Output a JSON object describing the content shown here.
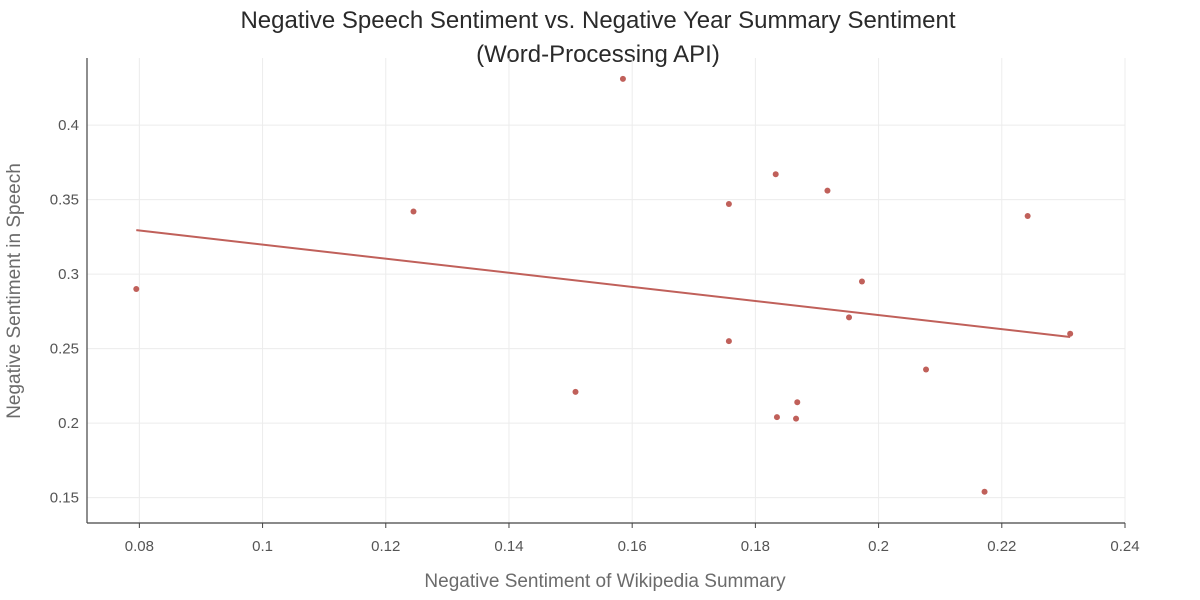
{
  "chart_data": {
    "type": "scatter",
    "title": "Negative Speech Sentiment vs. Negative Year Summary Sentiment",
    "subtitle": "(Word-Processing API)",
    "xlabel": "Negative Sentiment of Wikipedia Summary",
    "ylabel": "Negative Sentiment in Speech",
    "xlim": [
      0.0715,
      0.24
    ],
    "ylim": [
      0.133,
      0.445
    ],
    "x_ticks": [
      0.08,
      0.1,
      0.12,
      0.14,
      0.16,
      0.18,
      0.2,
      0.22,
      0.24
    ],
    "x_tick_labels": [
      "0.08",
      "0.1",
      "0.12",
      "0.14",
      "0.16",
      "0.18",
      "0.2",
      "0.22",
      "0.24"
    ],
    "y_ticks": [
      0.15,
      0.2,
      0.25,
      0.3,
      0.35,
      0.4
    ],
    "y_tick_labels": [
      "0.15",
      "0.2",
      "0.25",
      "0.3",
      "0.35",
      "0.4"
    ],
    "grid": true,
    "color": "#c0605a",
    "series": [
      {
        "name": "points",
        "x": [
          0.0795,
          0.1245,
          0.1508,
          0.1585,
          0.1757,
          0.1757,
          0.1833,
          0.1835,
          0.1866,
          0.1868,
          0.1917,
          0.1952,
          0.1973,
          0.2077,
          0.2172,
          0.2242,
          0.2311
        ],
        "y": [
          0.29,
          0.342,
          0.221,
          0.431,
          0.347,
          0.255,
          0.367,
          0.204,
          0.203,
          0.214,
          0.356,
          0.271,
          0.295,
          0.236,
          0.154,
          0.339,
          0.26
        ]
      }
    ],
    "trendline": {
      "x": [
        0.0795,
        0.2311
      ],
      "y": [
        0.3295,
        0.2578
      ]
    }
  }
}
